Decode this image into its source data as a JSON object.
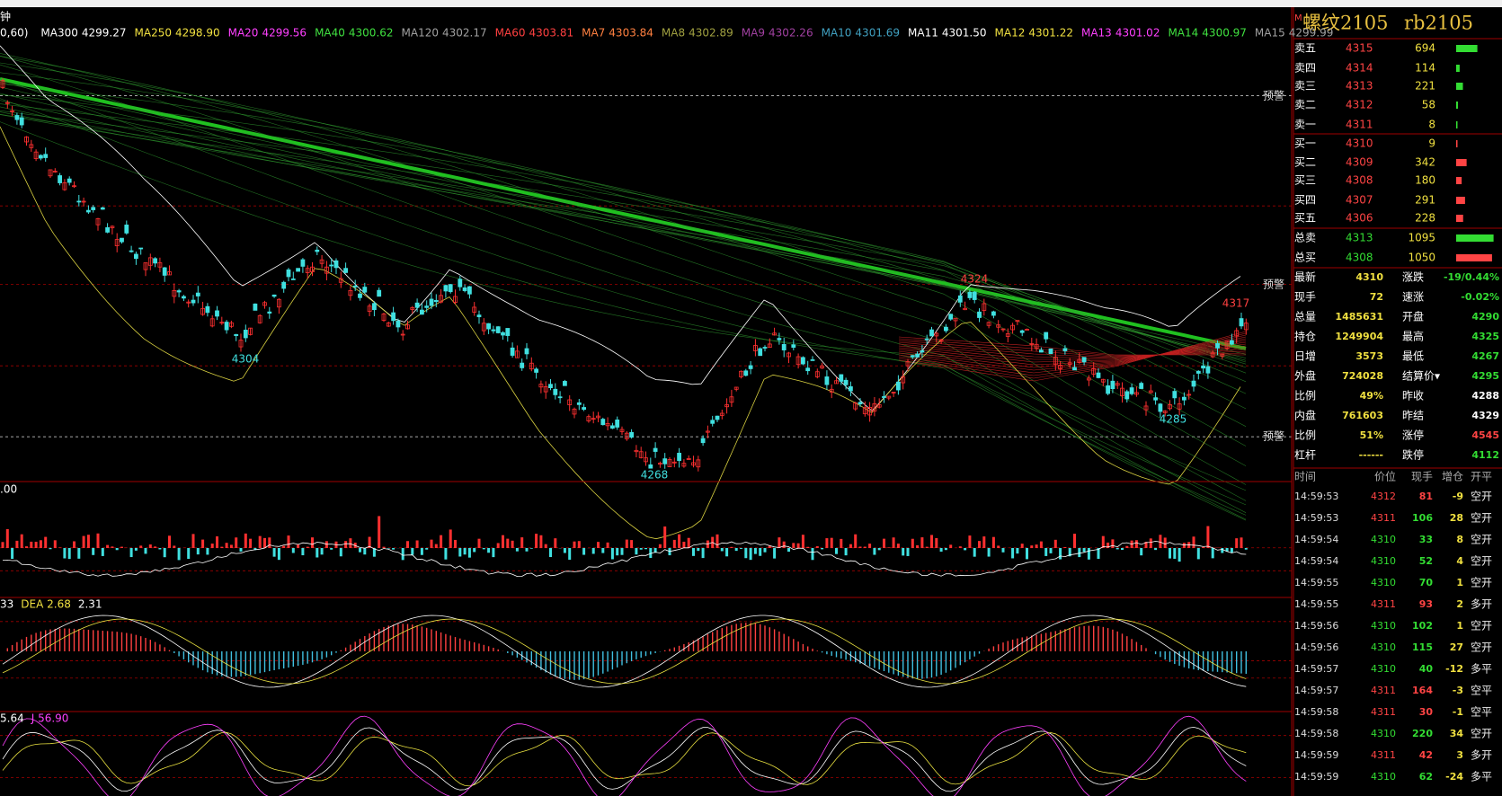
{
  "top": {
    "period": "钟",
    "params": "0,60)"
  },
  "ma_legend": [
    {
      "name": "MA300",
      "value": "4299.27",
      "color": "#ffffff"
    },
    {
      "name": "MA250",
      "value": "4298.90",
      "color": "#f0e040"
    },
    {
      "name": "MA20",
      "value": "4299.56",
      "color": "#ff40ff"
    },
    {
      "name": "MA40",
      "value": "4300.62",
      "color": "#40e040"
    },
    {
      "name": "MA120",
      "value": "4302.17",
      "color": "#a0a0a0"
    },
    {
      "name": "MA60",
      "value": "4303.81",
      "color": "#ff4040"
    },
    {
      "name": "MA7",
      "value": "4303.84",
      "color": "#ff8040"
    },
    {
      "name": "MA8",
      "value": "4302.89",
      "color": "#a0a040"
    },
    {
      "name": "MA9",
      "value": "4302.26",
      "color": "#a040a0"
    },
    {
      "name": "MA10",
      "value": "4301.69",
      "color": "#40a0c0"
    },
    {
      "name": "MA11",
      "value": "4301.50",
      "color": "#ffffff"
    },
    {
      "name": "MA12",
      "value": "4301.22",
      "color": "#f0e040"
    },
    {
      "name": "MA13",
      "value": "4301.02",
      "color": "#ff40ff"
    },
    {
      "name": "MA14",
      "value": "4300.97",
      "color": "#40e040"
    },
    {
      "name": "MA15",
      "value": "4299.99",
      "color": "#a0a0a0"
    }
  ],
  "chart_labels": [
    {
      "text": "4304",
      "color": "#40e0e0"
    },
    {
      "text": "4268",
      "color": "#40e0e0"
    },
    {
      "text": "4324",
      "color": "#ff4040"
    },
    {
      "text": "4285",
      "color": "#40e0e0"
    },
    {
      "text": "4317",
      "color": "#ff4040"
    }
  ],
  "alert": "预警",
  "volume_label": ".00",
  "macd_labels": [
    {
      "text": "33",
      "color": "#ffffff"
    },
    {
      "text": "DEA 2.68",
      "color": "#f0e040"
    },
    {
      "text": "2.31",
      "color": "#ffffff"
    }
  ],
  "kdj_labels": [
    {
      "text": "5.64",
      "color": "#ffffff"
    },
    {
      "text": "J 56.90",
      "color": "#ff40ff"
    }
  ],
  "panel": {
    "flag": "M",
    "title": "螺纹2105",
    "code": "rb2105"
  },
  "order_book": {
    "sell": [
      {
        "label": "卖五",
        "price": 4315,
        "volume": 694
      },
      {
        "label": "卖四",
        "price": 4314,
        "volume": 114
      },
      {
        "label": "卖三",
        "price": 4313,
        "volume": 221
      },
      {
        "label": "卖二",
        "price": 4312,
        "volume": 58
      },
      {
        "label": "卖一",
        "price": 4311,
        "volume": 8
      }
    ],
    "buy": [
      {
        "label": "买一",
        "price": 4310,
        "volume": 9
      },
      {
        "label": "买二",
        "price": 4309,
        "volume": 342
      },
      {
        "label": "买三",
        "price": 4308,
        "volume": 180
      },
      {
        "label": "买四",
        "price": 4307,
        "volume": 291
      },
      {
        "label": "买五",
        "price": 4306,
        "volume": 228
      }
    ],
    "sell_color": "#33dd33",
    "buy_color": "#ff4444"
  },
  "totals": [
    {
      "label": "总卖",
      "price": 4313,
      "volume": 1095,
      "color": "#33dd33"
    },
    {
      "label": "总买",
      "price": 4308,
      "volume": 1050,
      "color": "#ff4444"
    }
  ],
  "stats": [
    {
      "l": "最新",
      "lv": 4310,
      "lc": "#f0e040",
      "r": "涨跌",
      "rv": "-19/0.44%",
      "rc": "#33dd33"
    },
    {
      "l": "现手",
      "lv": 72,
      "lc": "#f0e040",
      "r": "速涨",
      "rv": "-0.02%",
      "rc": "#33dd33"
    },
    {
      "l": "总量",
      "lv": 1485631,
      "lc": "#f0e040",
      "r": "开盘",
      "rv": 4290,
      "rc": "#33dd33"
    },
    {
      "l": "持仓",
      "lv": 1249904,
      "lc": "#f0e040",
      "r": "最高",
      "rv": 4325,
      "rc": "#33dd33"
    },
    {
      "l": "日增",
      "lv": 3573,
      "lc": "#f0e040",
      "r": "最低",
      "rv": 4267,
      "rc": "#33dd33"
    },
    {
      "l": "外盘",
      "lv": 724028,
      "lc": "#f0e040",
      "r": "结算价▾",
      "rv": 4295,
      "rc": "#33dd33"
    },
    {
      "l": "比例",
      "lv": "49%",
      "lc": "#f0e040",
      "r": "昨收",
      "rv": 4288,
      "rc": "#ffffff"
    },
    {
      "l": "内盘",
      "lv": 761603,
      "lc": "#f0e040",
      "r": "昨结",
      "rv": 4329,
      "rc": "#ffffff"
    },
    {
      "l": "比例",
      "lv": "51%",
      "lc": "#f0e040",
      "r": "涨停",
      "rv": 4545,
      "rc": "#ff4444"
    },
    {
      "l": "杠杆",
      "lv": "------",
      "lc": "#f0e040",
      "r": "跌停",
      "rv": 4112,
      "rc": "#33dd33"
    }
  ],
  "trades": {
    "header": [
      "时间",
      "价位",
      "现手",
      "增仓",
      "开平"
    ],
    "rows": [
      {
        "time": "14:59:53",
        "price": 4312,
        "volume": 81,
        "change": -9,
        "type": "空开",
        "pc": "#ff4444",
        "vc": "#ff4444"
      },
      {
        "time": "14:59:53",
        "price": 4311,
        "volume": 106,
        "change": 28,
        "type": "空开",
        "pc": "#ff4444",
        "vc": "#33dd33"
      },
      {
        "time": "14:59:54",
        "price": 4310,
        "volume": 33,
        "change": 8,
        "type": "空开",
        "pc": "#33dd33",
        "vc": "#33dd33"
      },
      {
        "time": "14:59:54",
        "price": 4310,
        "volume": 52,
        "change": 4,
        "type": "空开",
        "pc": "#33dd33",
        "vc": "#33dd33"
      },
      {
        "time": "14:59:55",
        "price": 4310,
        "volume": 70,
        "change": 1,
        "type": "空开",
        "pc": "#33dd33",
        "vc": "#33dd33"
      },
      {
        "time": "14:59:55",
        "price": 4311,
        "volume": 93,
        "change": 2,
        "type": "多开",
        "pc": "#ff4444",
        "vc": "#ff4444"
      },
      {
        "time": "14:59:56",
        "price": 4310,
        "volume": 102,
        "change": 1,
        "type": "空开",
        "pc": "#33dd33",
        "vc": "#33dd33"
      },
      {
        "time": "14:59:56",
        "price": 4310,
        "volume": 115,
        "change": 27,
        "type": "空开",
        "pc": "#33dd33",
        "vc": "#33dd33"
      },
      {
        "time": "14:59:57",
        "price": 4310,
        "volume": 40,
        "change": -12,
        "type": "多平",
        "pc": "#33dd33",
        "vc": "#33dd33"
      },
      {
        "time": "14:59:57",
        "price": 4311,
        "volume": 164,
        "change": -3,
        "type": "空平",
        "pc": "#ff4444",
        "vc": "#ff4444"
      },
      {
        "time": "14:59:58",
        "price": 4311,
        "volume": 30,
        "change": -1,
        "type": "空平",
        "pc": "#ff4444",
        "vc": "#ff4444"
      },
      {
        "time": "14:59:58",
        "price": 4310,
        "volume": 220,
        "change": 34,
        "type": "空开",
        "pc": "#33dd33",
        "vc": "#33dd33"
      },
      {
        "time": "14:59:59",
        "price": 4311,
        "volume": 42,
        "change": 3,
        "type": "多开",
        "pc": "#ff4444",
        "vc": "#ff4444"
      },
      {
        "time": "14:59:59",
        "price": 4310,
        "volume": 62,
        "change": -24,
        "type": "多平",
        "pc": "#33dd33",
        "vc": "#33dd33"
      }
    ]
  }
}
